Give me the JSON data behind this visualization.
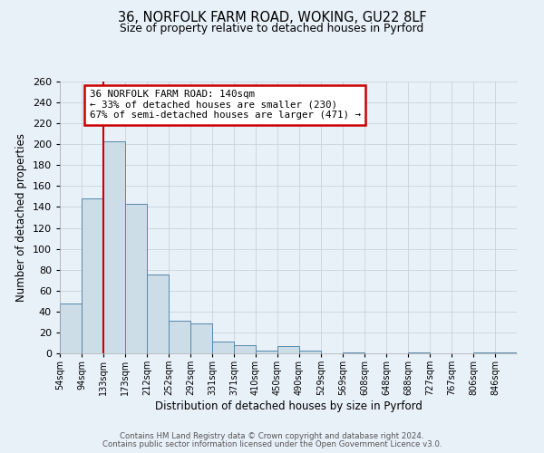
{
  "title_line1": "36, NORFOLK FARM ROAD, WOKING, GU22 8LF",
  "title_line2": "Size of property relative to detached houses in Pyrford",
  "xlabel": "Distribution of detached houses by size in Pyrford",
  "ylabel": "Number of detached properties",
  "bin_labels": [
    "54sqm",
    "94sqm",
    "133sqm",
    "173sqm",
    "212sqm",
    "252sqm",
    "292sqm",
    "331sqm",
    "371sqm",
    "410sqm",
    "450sqm",
    "490sqm",
    "529sqm",
    "569sqm",
    "608sqm",
    "648sqm",
    "688sqm",
    "727sqm",
    "767sqm",
    "806sqm",
    "846sqm"
  ],
  "bar_values": [
    48,
    148,
    203,
    143,
    75,
    31,
    29,
    11,
    8,
    3,
    7,
    3,
    0,
    1,
    0,
    0,
    1,
    0,
    0,
    1,
    1
  ],
  "bar_color": "#ccdde8",
  "bar_edge_color": "#5588aa",
  "ylim": [
    0,
    260
  ],
  "yticks": [
    0,
    20,
    40,
    60,
    80,
    100,
    120,
    140,
    160,
    180,
    200,
    220,
    240,
    260
  ],
  "red_line_x": 2,
  "annotation_text_line1": "36 NORFOLK FARM ROAD: 140sqm",
  "annotation_text_line2": "← 33% of detached houses are smaller (230)",
  "annotation_text_line3": "67% of semi-detached houses are larger (471) →",
  "annotation_box_facecolor": "#ffffff",
  "annotation_border_color": "#cc0000",
  "footer_line1": "Contains HM Land Registry data © Crown copyright and database right 2024.",
  "footer_line2": "Contains public sector information licensed under the Open Government Licence v3.0.",
  "background_color": "#e8f0f8",
  "grid_color": "#c5cdd8"
}
